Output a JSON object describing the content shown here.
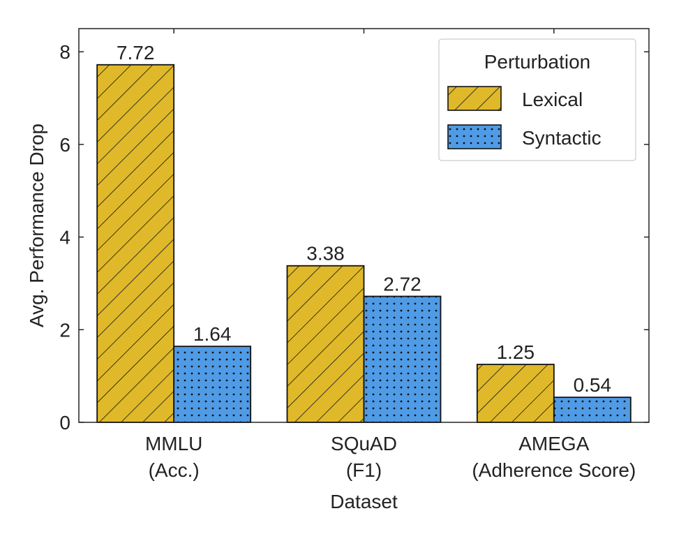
{
  "chart_data": {
    "type": "bar",
    "title": "",
    "xlabel": "Dataset",
    "ylabel": "Avg. Performance Drop",
    "ylim": [
      0,
      8.5
    ],
    "yticks": [
      0,
      2,
      4,
      6,
      8
    ],
    "grid": false,
    "legend_position": "top-right",
    "legend_title": "Perturbation",
    "categories": [
      {
        "line1": "MMLU",
        "line2": "(Acc.)"
      },
      {
        "line1": "SQuAD",
        "line2": "(F1)"
      },
      {
        "line1": "AMEGA",
        "line2": "(Adherence Score)"
      }
    ],
    "series": [
      {
        "name": "Lexical",
        "color": "#e0b92a",
        "pattern": "diagonal-hatch",
        "values": [
          7.72,
          3.38,
          1.25
        ],
        "labels": [
          "7.72",
          "3.38",
          "1.25"
        ]
      },
      {
        "name": "Syntactic",
        "color": "#4f9be6",
        "pattern": "dots",
        "values": [
          1.64,
          2.72,
          0.54
        ],
        "labels": [
          "1.64",
          "2.72",
          "0.54"
        ]
      }
    ]
  }
}
